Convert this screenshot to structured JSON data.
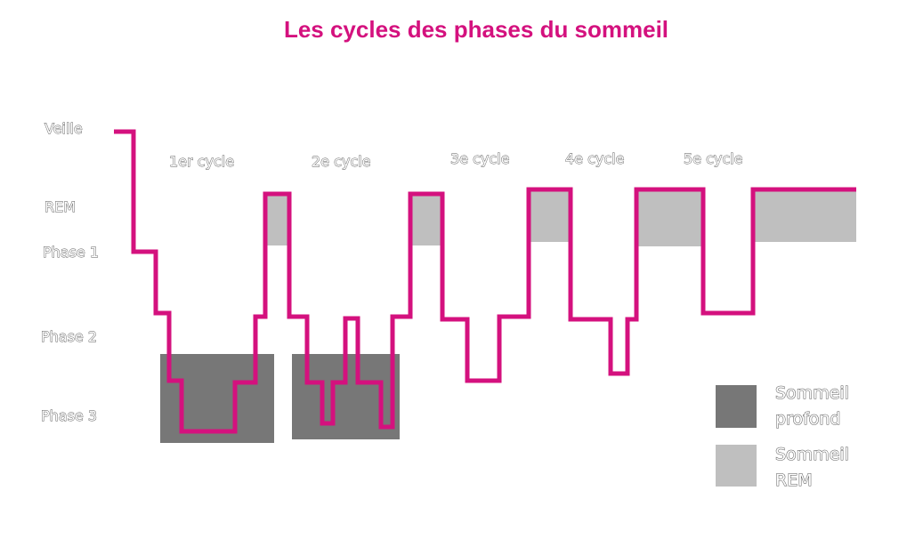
{
  "title": "Les cycles des phases du sommeil",
  "levels": [
    "Veille",
    "REM",
    "Phase 1",
    "Phase 2",
    "Phase 3"
  ],
  "cycles": [
    {
      "label": "1er cycle"
    },
    {
      "label": "2e cycle"
    },
    {
      "label": "3e cycle"
    },
    {
      "label": "4e cycle"
    },
    {
      "label": "5e cycle"
    }
  ],
  "legend": [
    {
      "line1": "Sommeil",
      "line2": "profond",
      "color": "#777777"
    },
    {
      "line1": "Sommeil",
      "line2": "REM",
      "color": "#bfbfbf"
    }
  ],
  "colors": {
    "title": "#d4117e",
    "line": "#d4117e",
    "deep": "#777777",
    "rem": "#bfbfbf"
  }
}
